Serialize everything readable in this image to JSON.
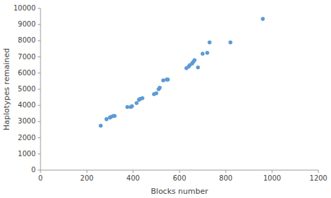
{
  "chart_data": {
    "type": "scatter",
    "x": [
      260,
      285,
      300,
      305,
      315,
      320,
      375,
      390,
      395,
      415,
      425,
      430,
      440,
      490,
      500,
      510,
      515,
      530,
      545,
      550,
      630,
      640,
      645,
      655,
      660,
      665,
      680,
      700,
      720,
      730,
      820,
      960
    ],
    "values": [
      2750,
      3150,
      3250,
      3300,
      3350,
      3350,
      3900,
      3900,
      3950,
      4150,
      4350,
      4400,
      4450,
      4700,
      4750,
      5000,
      5100,
      5550,
      5600,
      5600,
      6300,
      6400,
      6500,
      6600,
      6700,
      6800,
      6350,
      7200,
      7250,
      7900,
      7900,
      9350
    ],
    "color": "#5B9BD5",
    "xlabel": "Blocks number",
    "ylabel": "Haplotypes remained",
    "xlim": [
      0,
      1200
    ],
    "ylim": [
      0,
      10000
    ],
    "xticks": [
      0,
      200,
      400,
      600,
      800,
      1000,
      1200
    ],
    "yticks": [
      0,
      1000,
      2000,
      3000,
      4000,
      5000,
      6000,
      7000,
      8000,
      9000,
      10000
    ]
  }
}
